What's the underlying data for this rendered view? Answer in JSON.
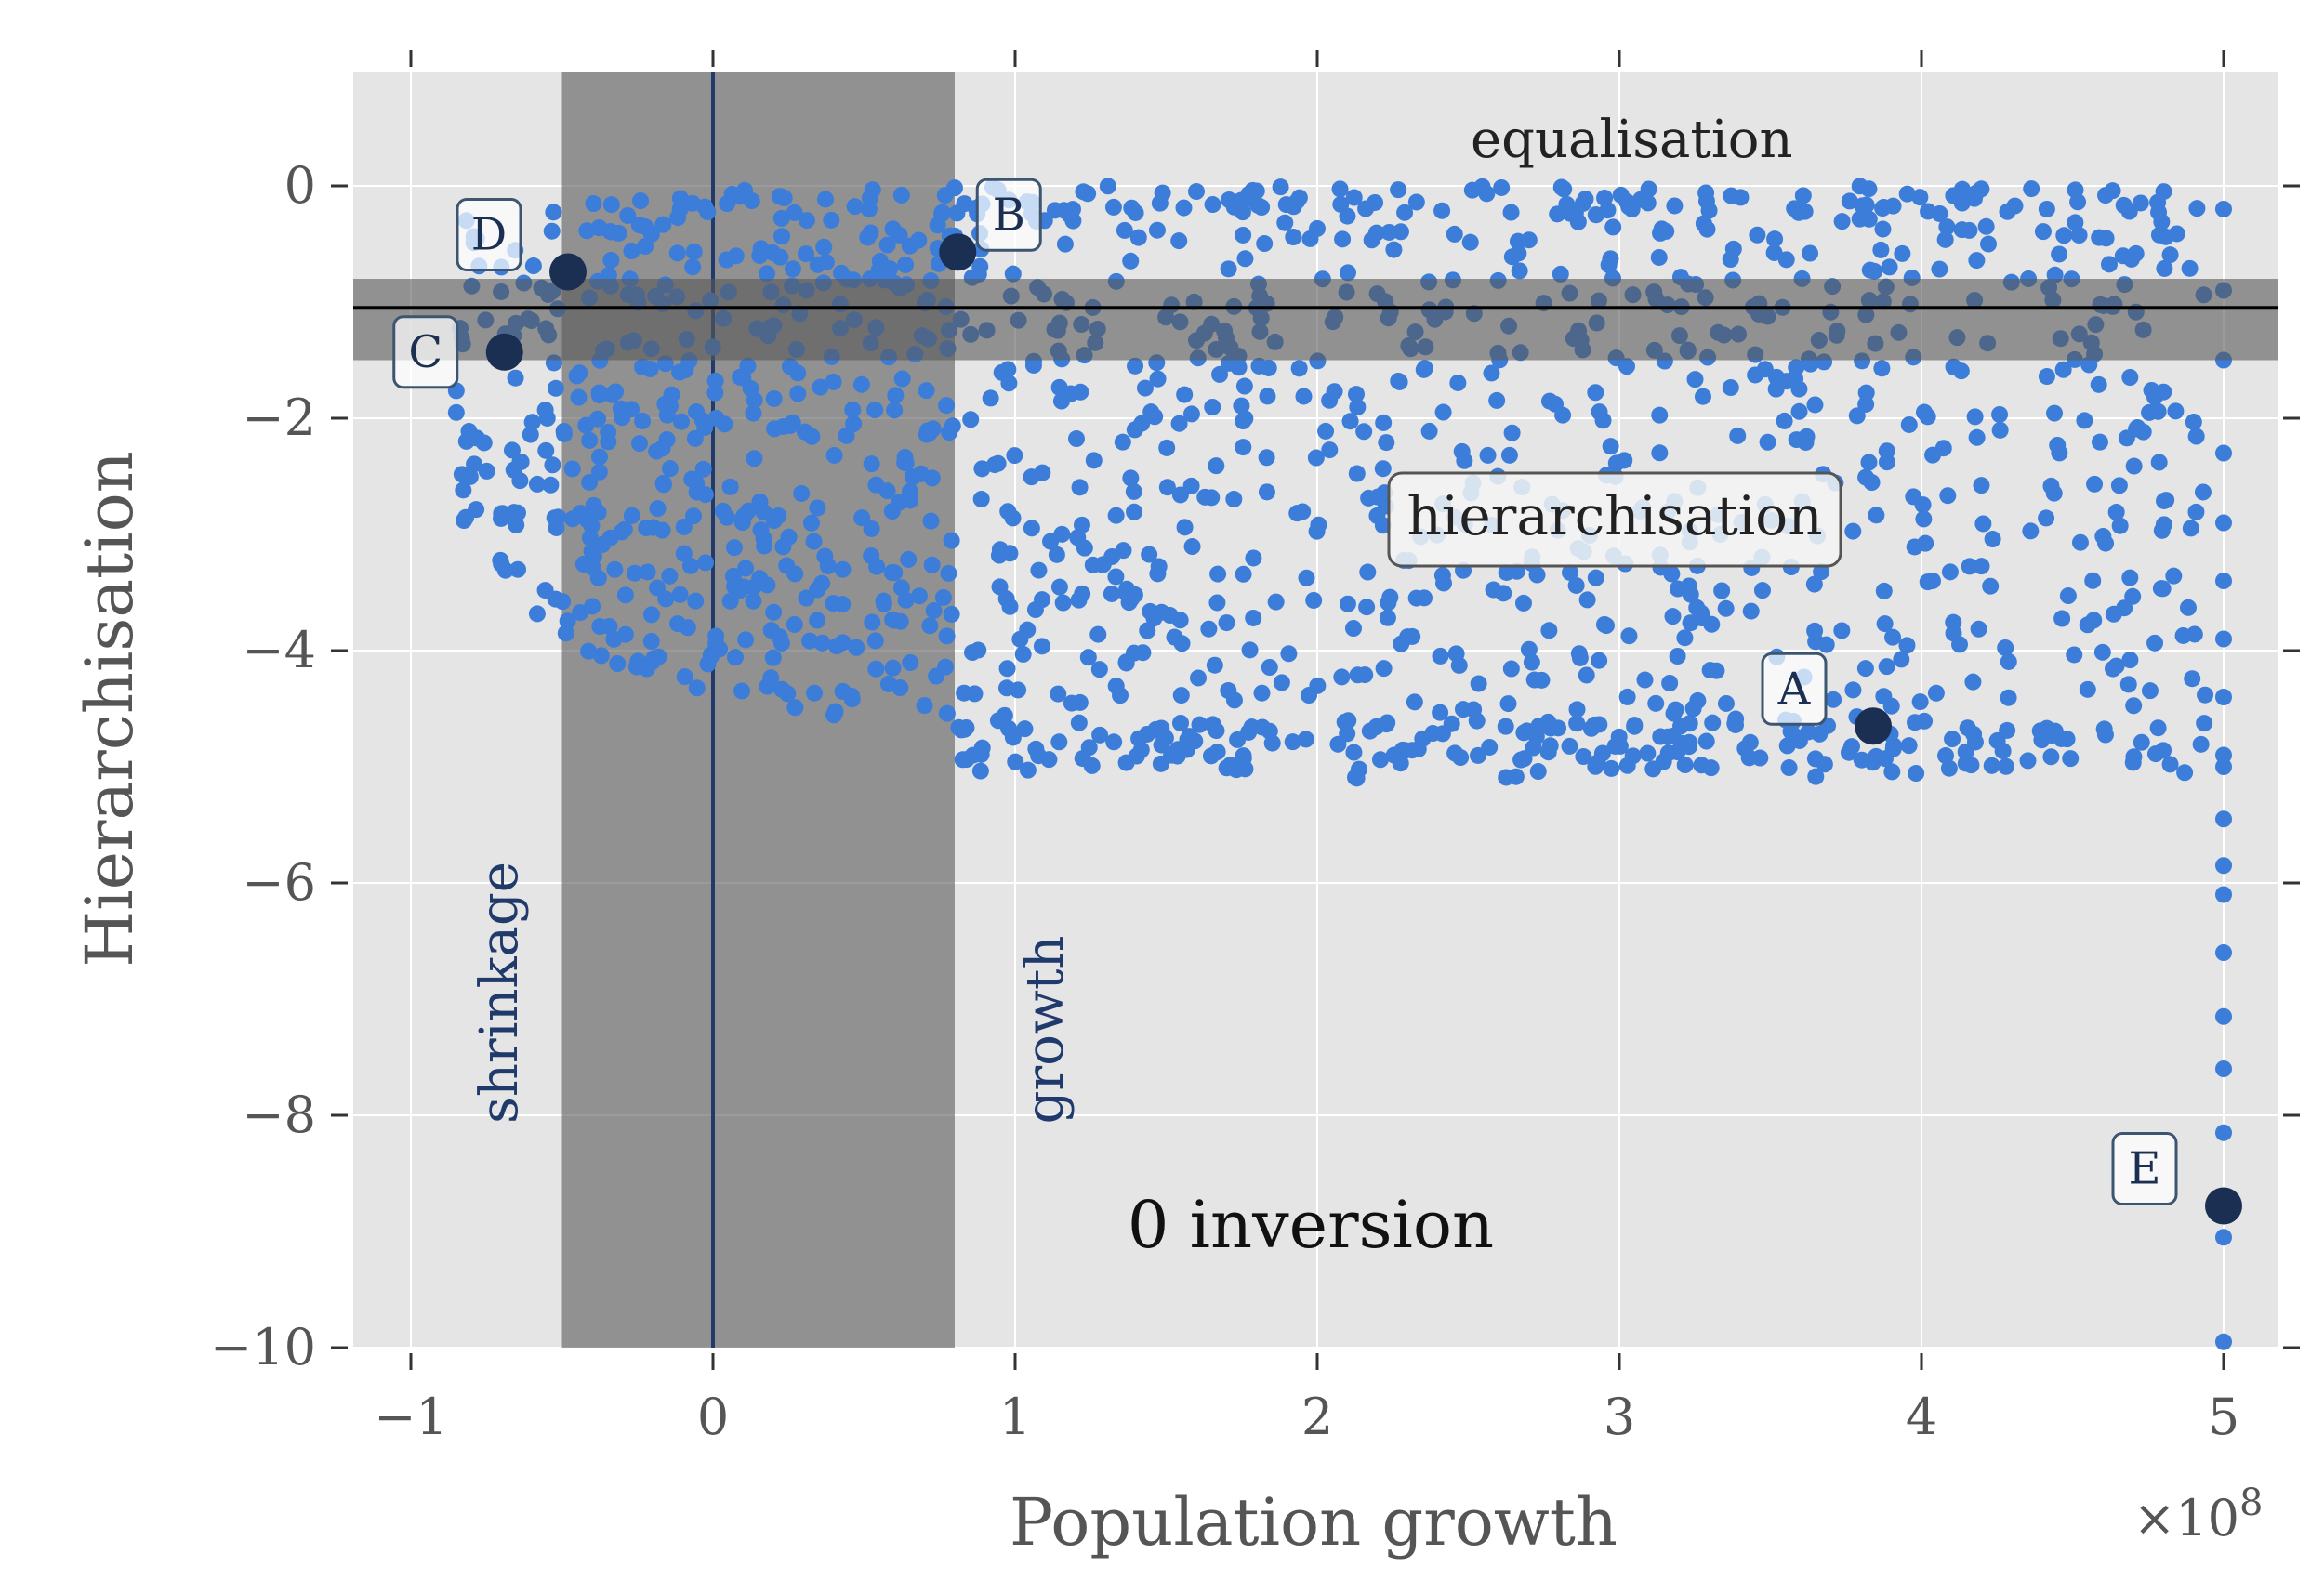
{
  "chart_data": {
    "type": "scatter",
    "xlabel": "Population growth",
    "ylabel": "Hierarchisation",
    "x_multiplier_label": "×10",
    "x_multiplier_exp": "8",
    "xlim": [
      -120000000,
      520000000
    ],
    "ylim": [
      -10,
      1
    ],
    "x_ticks": [
      -100000000,
      0,
      100000000,
      200000000,
      300000000,
      400000000,
      500000000
    ],
    "x_tick_labels": [
      "−1",
      "0",
      "1",
      "2",
      "3",
      "4",
      "5"
    ],
    "y_ticks": [
      0,
      -2,
      -4,
      -6,
      -8,
      -10
    ],
    "y_tick_labels": [
      "0",
      "−2",
      "−4",
      "−6",
      "−8",
      "−10"
    ],
    "grid": true,
    "colors": {
      "background": "#e5e5e5",
      "points": "#3b7dd8",
      "highlight": "#1b2f52",
      "band": "#595959",
      "line_v": "#1f3a6b",
      "line_h": "#000000"
    },
    "vertical_band": {
      "x0": -50000000,
      "x1": 80000000
    },
    "vertical_line": {
      "x": 0
    },
    "horizontal_band": {
      "y0": -1.5,
      "y1": -0.8
    },
    "horizontal_line": {
      "y": -1.05
    },
    "highlight_points": [
      {
        "label": "A",
        "x": 384000000,
        "y": -4.65
      },
      {
        "label": "B",
        "x": 81000000,
        "y": -0.57
      },
      {
        "label": "C",
        "x": -69000000,
        "y": -1.43
      },
      {
        "label": "D",
        "x": -48000000,
        "y": -0.74
      },
      {
        "label": "E",
        "x": 500000000,
        "y": -8.78
      }
    ],
    "edge_series_x500": [
      -0.2,
      -0.9,
      -1.5,
      -2.3,
      -2.9,
      -3.4,
      -3.9,
      -4.4,
      -4.9,
      -5.0,
      -5.45,
      -5.85,
      -6.1,
      -6.6,
      -7.15,
      -7.6,
      -8.15,
      -8.8,
      -9.05,
      -9.95
    ],
    "region_labels": {
      "equalisation": "equalisation",
      "hierarchisation": "hierarchisation",
      "shrinkage": "shrinkage",
      "growth": "growth",
      "inversion": "0 inversion"
    },
    "scatter_regions": [
      {
        "x_range": [
          -85000000,
          80000000
        ],
        "y_range": [
          -4.7,
          0
        ],
        "shape": "left_blob",
        "count": 480
      },
      {
        "x_range": [
          80000000,
          500000000
        ],
        "y_range": [
          -5.3,
          0
        ],
        "shape": "right_field",
        "count": 1050
      }
    ]
  }
}
